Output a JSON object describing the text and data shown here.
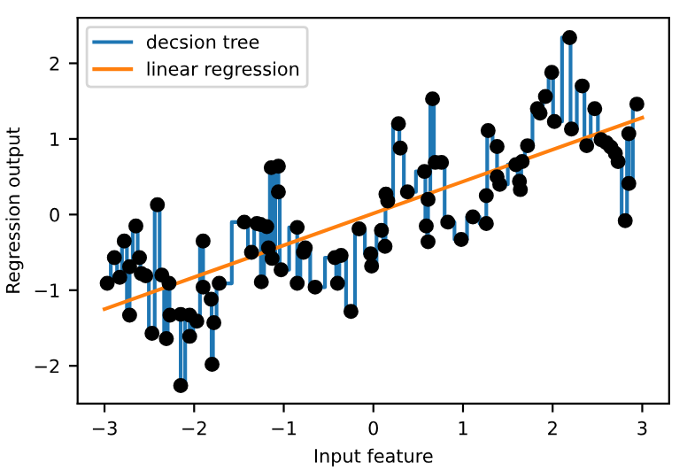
{
  "chart_data": {
    "type": "line",
    "xlabel": "Input feature",
    "ylabel": "Regression output",
    "xlim": [
      -3.3,
      3.3
    ],
    "ylim": [
      -2.5,
      2.6
    ],
    "xticks": [
      -3,
      -2,
      -1,
      0,
      1,
      2,
      3
    ],
    "yticks": [
      -2,
      -1,
      0,
      1,
      2
    ],
    "grid": false,
    "legend": "top left",
    "series": [
      {
        "name": "decsion tree",
        "type": "step",
        "color": "#1f77b4",
        "x": [
          -2.97,
          -2.89,
          -2.83,
          -2.78,
          -2.72,
          -2.72,
          -2.65,
          -2.61,
          -2.59,
          -2.54,
          -2.47,
          -2.41,
          -2.36,
          -2.31,
          -2.28,
          -2.27,
          -2.15,
          -2.15,
          -2.05,
          -2.05,
          -1.97,
          -1.9,
          -1.9,
          -1.81,
          -1.8,
          -1.78,
          -1.72,
          -1.44,
          -1.36,
          -1.3,
          -1.26,
          -1.25,
          -1.19,
          -1.17,
          -1.14,
          -1.13,
          -1.06,
          -1.06,
          -1.03,
          -0.85,
          -0.85,
          -0.78,
          -0.76,
          -0.65,
          -0.43,
          -0.4,
          -0.36,
          -0.25,
          -0.16,
          -0.03,
          -0.02,
          0.09,
          0.13,
          0.14,
          0.16,
          0.28,
          0.3,
          0.38,
          0.57,
          0.59,
          0.61,
          0.61,
          0.66,
          0.69,
          0.76,
          0.83,
          0.98,
          1.11,
          1.26,
          1.26,
          1.28,
          1.38,
          1.38,
          1.41,
          1.59,
          1.63,
          1.64,
          1.66,
          1.72,
          1.83,
          1.86,
          1.92,
          1.99,
          2.02,
          2.19,
          2.21,
          2.33,
          2.38,
          2.47,
          2.54,
          2.6,
          2.65,
          2.7,
          2.73,
          2.81,
          2.85,
          2.85,
          2.94
        ],
        "values": [
          -0.91,
          -0.57,
          -0.83,
          -0.35,
          -1.33,
          -0.69,
          -0.15,
          -0.57,
          -0.78,
          -0.81,
          -1.57,
          0.13,
          -0.8,
          -1.64,
          -0.91,
          -1.33,
          -1.32,
          -2.26,
          -1.33,
          -1.61,
          -1.41,
          -0.35,
          -0.96,
          -1.12,
          -1.98,
          -1.43,
          -0.91,
          -0.1,
          -0.5,
          -0.12,
          -0.13,
          -0.89,
          -0.16,
          -0.44,
          0.62,
          -0.58,
          0.64,
          0.3,
          -0.73,
          -0.17,
          -0.91,
          -0.5,
          -0.44,
          -0.96,
          -0.57,
          -0.91,
          -0.54,
          -1.28,
          -0.19,
          -0.52,
          -0.68,
          -0.21,
          -0.42,
          0.27,
          0.18,
          1.2,
          0.88,
          0.3,
          0.57,
          -0.15,
          -0.36,
          0.2,
          1.53,
          0.69,
          0.69,
          -0.1,
          -0.33,
          -0.03,
          -0.12,
          0.25,
          1.11,
          0.9,
          0.5,
          0.4,
          0.66,
          0.44,
          0.33,
          0.7,
          0.91,
          1.4,
          1.34,
          1.56,
          1.88,
          1.23,
          2.34,
          1.13,
          1.7,
          0.91,
          1.4,
          0.99,
          0.95,
          0.89,
          0.81,
          0.7,
          -0.08,
          1.07,
          0.41,
          1.46
        ]
      },
      {
        "name": "linear regression",
        "color": "#ff7f0e",
        "x": [
          -3,
          3
        ],
        "values": [
          -1.25,
          1.28
        ]
      },
      {
        "type": "scatter",
        "color": "#000000",
        "marker": "circle",
        "x": [
          -2.97,
          -2.89,
          -2.83,
          -2.78,
          -2.72,
          -2.72,
          -2.65,
          -2.61,
          -2.59,
          -2.54,
          -2.47,
          -2.41,
          -2.36,
          -2.31,
          -2.28,
          -2.27,
          -2.15,
          -2.15,
          -2.05,
          -2.05,
          -1.97,
          -1.9,
          -1.9,
          -1.81,
          -1.8,
          -1.78,
          -1.72,
          -1.44,
          -1.36,
          -1.3,
          -1.26,
          -1.25,
          -1.19,
          -1.17,
          -1.14,
          -1.13,
          -1.06,
          -1.06,
          -1.03,
          -0.85,
          -0.85,
          -0.78,
          -0.76,
          -0.65,
          -0.43,
          -0.4,
          -0.36,
          -0.25,
          -0.16,
          -0.03,
          -0.02,
          0.09,
          0.13,
          0.14,
          0.16,
          0.28,
          0.3,
          0.38,
          0.57,
          0.59,
          0.61,
          0.61,
          0.66,
          0.69,
          0.76,
          0.83,
          0.98,
          1.11,
          1.26,
          1.26,
          1.28,
          1.38,
          1.38,
          1.41,
          1.59,
          1.63,
          1.64,
          1.66,
          1.72,
          1.83,
          1.86,
          1.92,
          1.99,
          2.02,
          2.19,
          2.21,
          2.33,
          2.38,
          2.47,
          2.54,
          2.6,
          2.65,
          2.7,
          2.73,
          2.81,
          2.85,
          2.85,
          2.94
        ],
        "values": [
          -0.91,
          -0.57,
          -0.83,
          -0.35,
          -1.33,
          -0.69,
          -0.15,
          -0.57,
          -0.78,
          -0.81,
          -1.57,
          0.13,
          -0.8,
          -1.64,
          -0.91,
          -1.33,
          -1.32,
          -2.26,
          -1.33,
          -1.61,
          -1.41,
          -0.35,
          -0.96,
          -1.12,
          -1.98,
          -1.43,
          -0.91,
          -0.1,
          -0.5,
          -0.12,
          -0.13,
          -0.89,
          -0.16,
          -0.44,
          0.62,
          -0.58,
          0.64,
          0.3,
          -0.73,
          -0.17,
          -0.91,
          -0.5,
          -0.44,
          -0.96,
          -0.57,
          -0.91,
          -0.54,
          -1.28,
          -0.19,
          -0.52,
          -0.68,
          -0.21,
          -0.42,
          0.27,
          0.18,
          1.2,
          0.88,
          0.3,
          0.57,
          -0.15,
          -0.36,
          0.2,
          1.53,
          0.69,
          0.69,
          -0.1,
          -0.33,
          -0.03,
          -0.12,
          0.25,
          1.11,
          0.9,
          0.5,
          0.4,
          0.66,
          0.44,
          0.33,
          0.7,
          0.91,
          1.4,
          1.34,
          1.56,
          1.88,
          1.23,
          2.34,
          1.13,
          1.7,
          0.91,
          1.4,
          0.99,
          0.95,
          0.89,
          0.81,
          0.7,
          -0.08,
          1.07,
          0.41,
          1.46
        ]
      }
    ]
  }
}
